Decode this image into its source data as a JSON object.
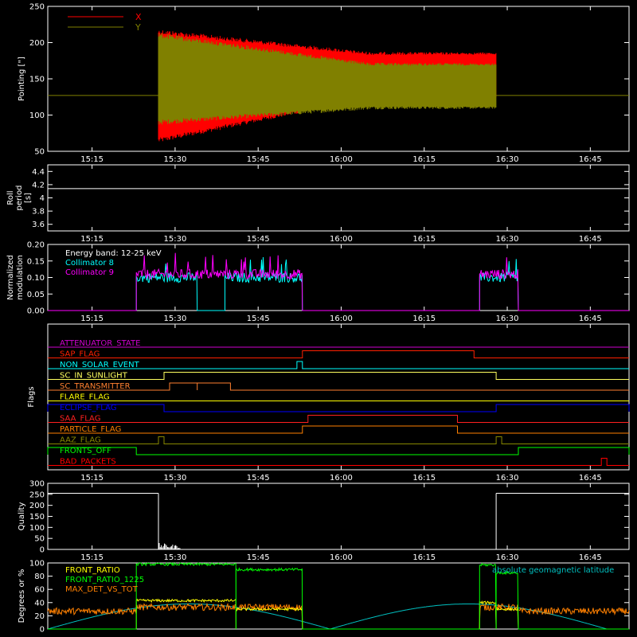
{
  "chart_data": [
    {
      "type": "line",
      "ylabel": "Pointing [\"]",
      "ylim": [
        50,
        250
      ],
      "yticks": [
        50,
        100,
        150,
        200,
        250
      ],
      "x_ticks": [
        "15:15",
        "15:30",
        "15:45",
        "16:00",
        "16:15",
        "16:30",
        "16:45"
      ],
      "xlim_minutes": [
        15.07,
        16.87
      ],
      "legend": "top-left",
      "series": [
        {
          "name": "X",
          "color": "#ff0000",
          "oscillation": {
            "start": "15:27",
            "end": "16:28",
            "center": 140,
            "start_range": [
              65,
              215
            ],
            "end_range": [
              125,
              185
            ]
          }
        },
        {
          "name": "Y",
          "color": "#808000",
          "oscillation": {
            "start": "15:27",
            "end": "16:28",
            "center": 150,
            "start_range": [
              90,
              210
            ],
            "end_range": [
              110,
              170
            ]
          }
        }
      ],
      "reference_line": 127
    },
    {
      "type": "line",
      "ylabel": "Roll period [s]",
      "ylim": [
        3.5,
        4.5
      ],
      "yticks": [
        3.6,
        3.8,
        4.0,
        4.2,
        4.4
      ],
      "x_ticks": [
        "15:15",
        "15:30",
        "15:45",
        "16:00",
        "16:15",
        "16:30",
        "16:45"
      ],
      "series": [
        {
          "color": "#ffffff",
          "constant": 4.14
        }
      ]
    },
    {
      "type": "line",
      "ylabel": "Normalized modulation",
      "ylim": [
        0,
        0.2
      ],
      "yticks": [
        "0.00",
        "0.05",
        "0.10",
        "0.15",
        "0.20"
      ],
      "x_ticks": [
        "15:15",
        "15:30",
        "15:45",
        "16:00",
        "16:15",
        "16:30",
        "16:45"
      ],
      "annotation": "Energy band: 12-25 keV",
      "series": [
        {
          "name": "Collimator 8",
          "color": "#00ffff",
          "segments": [
            [
              "15:23",
              "15:34"
            ],
            [
              "15:39",
              "15:53"
            ],
            [
              "16:25",
              "16:32"
            ]
          ],
          "level": 0.1
        },
        {
          "name": "Collimator 9",
          "color": "#ff00ff",
          "segments": [
            [
              "15:23",
              "15:53"
            ],
            [
              "16:25",
              "16:32"
            ]
          ],
          "level": 0.11
        }
      ]
    },
    {
      "type": "line",
      "ylabel": "Flags",
      "x_ticks": [
        "15:15",
        "15:30",
        "15:45",
        "16:00",
        "16:15",
        "16:30",
        "16:45"
      ],
      "flags": [
        {
          "name": "ATTENUATOR_STATE",
          "color": "#d000d0",
          "high": []
        },
        {
          "name": "SAP_FLAG",
          "color": "#ff2000",
          "high": [
            [
              "15:53",
              "16:24"
            ]
          ]
        },
        {
          "name": "NON_SOLAR_EVENT",
          "color": "#00ffff",
          "high": [
            [
              "15:52",
              "15:53"
            ]
          ]
        },
        {
          "name": "SC_IN_SUNLIGHT",
          "color": "#ffff60",
          "high": [
            [
              "15:28",
              "16:28"
            ]
          ]
        },
        {
          "name": "SC_TRANSMITTER",
          "color": "#ff8030",
          "high": [
            [
              "15:29",
              "15:34"
            ],
            [
              "15:34",
              "15:40"
            ]
          ]
        },
        {
          "name": "FLARE_FLAG",
          "color": "#ffff00",
          "high": []
        },
        {
          "name": "ECLIPSE_FLAG",
          "color": "#0000ff",
          "high": [
            [
              "15:06",
              "15:28"
            ],
            [
              "16:28",
              "16:52"
            ]
          ]
        },
        {
          "name": "SAA_FLAG",
          "color": "#ff2020",
          "high": [
            [
              "15:54",
              "16:21"
            ]
          ]
        },
        {
          "name": "PARTICLE_FLAG",
          "color": "#ff8000",
          "high": [
            [
              "15:53",
              "16:21"
            ]
          ]
        },
        {
          "name": "AAZ_FLAG",
          "color": "#888800",
          "high": [
            [
              "15:27",
              "15:28"
            ],
            [
              "16:28",
              "16:29"
            ]
          ]
        },
        {
          "name": "FRONTS_OFF",
          "color": "#00ff00",
          "high": [
            [
              "15:06",
              "15:23"
            ],
            [
              "16:32",
              "16:52"
            ]
          ]
        },
        {
          "name": "BAD_PACKETS",
          "color": "#ff0000",
          "high": [
            [
              "16:47",
              "16:48"
            ]
          ]
        }
      ]
    },
    {
      "type": "line",
      "ylabel": "Quality",
      "ylim": [
        0,
        300
      ],
      "yticks": [
        0,
        50,
        100,
        150,
        200,
        250,
        300
      ],
      "x_ticks": [
        "15:15",
        "15:30",
        "15:45",
        "16:00",
        "16:15",
        "16:30",
        "16:45"
      ],
      "series": [
        {
          "color": "#ffffff",
          "segments": [
            [
              "15:06",
              "15:27",
              255
            ],
            [
              "16:28",
              "16:52",
              255
            ]
          ]
        }
      ]
    },
    {
      "type": "line",
      "ylabel": "Degrees or %",
      "ylim": [
        0,
        100
      ],
      "yticks": [
        0,
        20,
        40,
        60,
        80,
        100
      ],
      "annotation": "absolute geomagnetic latitude",
      "series": [
        {
          "name": "FRONT_RATIO",
          "color": "#ffff00",
          "segments": [
            [
              "15:23",
              "15:41",
              43
            ],
            [
              "15:41",
              "15:53",
              30
            ],
            [
              "16:25",
              "16:28",
              40
            ],
            [
              "16:28",
              "16:32",
              30
            ]
          ]
        },
        {
          "name": "FRONT_RATIO_1225",
          "color": "#00ff00",
          "segments": [
            [
              "15:23",
              "15:41",
              98
            ],
            [
              "15:41",
              "15:53",
              90
            ],
            [
              "16:25",
              "16:28",
              97
            ],
            [
              "16:28",
              "16:32",
              85
            ]
          ]
        },
        {
          "name": "MAX_DET_VS_TOT",
          "color": "#ff8000",
          "baseline": 27
        },
        {
          "name": "absolute geomagnetic latitude",
          "color": "#00c0c0",
          "wave": {
            "max": 38,
            "min_times": [
              "15:07",
              "15:58",
              "16:48"
            ]
          }
        }
      ]
    }
  ]
}
